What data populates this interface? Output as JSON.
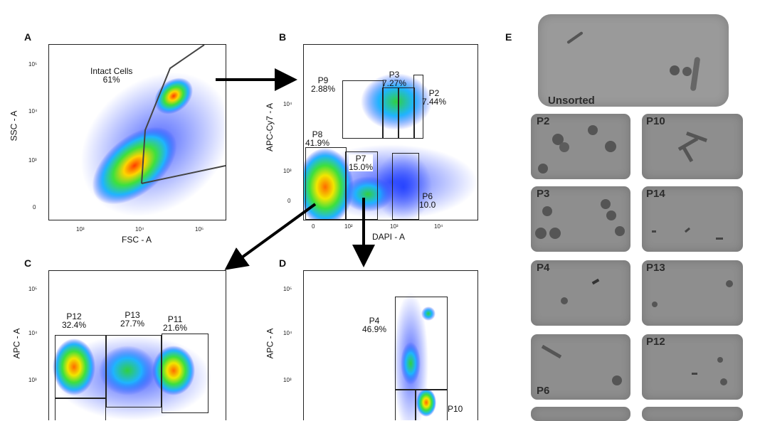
{
  "panels": {
    "A": {
      "letter": "A",
      "xlabel": "FSC - A",
      "ylabel": "SSC - A",
      "yticks": [
        "10⁵",
        "10⁴",
        "10³",
        "0"
      ],
      "xticks": [
        "10³",
        "10⁴",
        "10⁵"
      ],
      "gate": {
        "name": "Intact Cells",
        "pct": "61%"
      }
    },
    "B": {
      "letter": "B",
      "xlabel": "DAPI - A",
      "ylabel": "APC-Cy7 - A",
      "yticks": [
        "10⁴",
        "10³",
        "0"
      ],
      "xticks": [
        "0",
        "10²",
        "10³",
        "10⁴"
      ],
      "gates": [
        {
          "name": "P9",
          "pct": "2.88%"
        },
        {
          "name": "P3",
          "pct": "7.27%"
        },
        {
          "name": "P2",
          "pct": "7.44%"
        },
        {
          "name": "P8",
          "pct": "41.9%"
        },
        {
          "name": "P7",
          "pct": "15.0%"
        },
        {
          "name": "P6",
          "pct": "10.0"
        }
      ]
    },
    "C": {
      "letter": "C",
      "ylabel": "APC - A",
      "yticks": [
        "10⁵",
        "10⁴",
        "10³"
      ],
      "gates": [
        {
          "name": "P12",
          "pct": "32.4%"
        },
        {
          "name": "P13",
          "pct": "27.7%"
        },
        {
          "name": "P11",
          "pct": "21.6%"
        }
      ]
    },
    "D": {
      "letter": "D",
      "ylabel": "APC - A",
      "yticks": [
        "10⁵",
        "10⁴",
        "10³"
      ],
      "gates": [
        {
          "name": "P4",
          "pct": "46.9%"
        },
        {
          "name": "P10",
          "pct": ""
        }
      ]
    },
    "E": {
      "letter": "E",
      "tiles": [
        "Unsorted",
        "P2",
        "P10",
        "P3",
        "P14",
        "P4",
        "P13",
        "P6",
        "P12"
      ]
    }
  }
}
